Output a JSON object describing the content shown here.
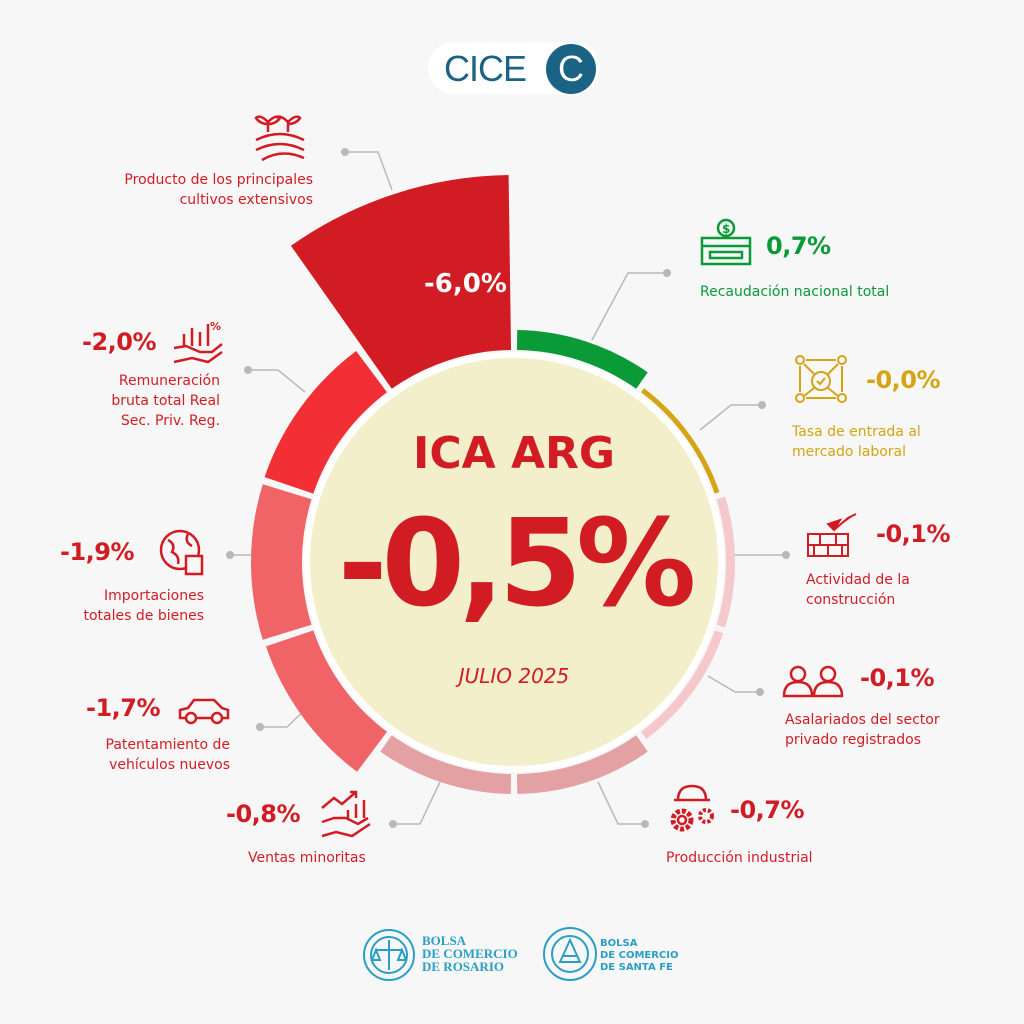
{
  "logo": {
    "text": "CICE",
    "circle_letter": "C"
  },
  "center": {
    "title": "ICA ARG",
    "value": "-0,5%",
    "period": "JULIO 2025"
  },
  "chart_data": {
    "type": "radial-bar",
    "title": "ICA ARG",
    "total": -0.5,
    "period": "JULIO 2025",
    "items": [
      {
        "label": "Recaudación nacional total",
        "value": 0.7,
        "display": "0,7%",
        "color": "#0a9a38",
        "icon": "cash-register-icon"
      },
      {
        "label": "Tasa de entrada al mercado laboral",
        "value": -0.0,
        "display": "-0,0%",
        "color": "#d4a414",
        "icon": "network-people-icon"
      },
      {
        "label": "Actividad de la construcción",
        "value": -0.1,
        "display": "-0,1%",
        "color": "#f5c9cb",
        "icon": "brick-wall-trowel-icon"
      },
      {
        "label": "Asalariados del sector privado registrados",
        "value": -0.1,
        "display": "-0,1%",
        "color": "#f5c9cb",
        "icon": "people-icon"
      },
      {
        "label": "Producción industrial",
        "value": -0.7,
        "display": "-0,7%",
        "color": "#e4a1a4",
        "icon": "gears-helmet-icon"
      },
      {
        "label": "Ventas minoritas",
        "value": -0.8,
        "display": "-0,8%",
        "color": "#e4a1a4",
        "icon": "hand-money-chart-icon"
      },
      {
        "label": "Patentamiento de vehículos nuevos",
        "value": -1.7,
        "display": "-1,7%",
        "color": "#f06468",
        "icon": "car-icon"
      },
      {
        "label": "Importaciones totales de bienes",
        "value": -1.9,
        "display": "-1,9%",
        "color": "#f06468",
        "icon": "globe-box-icon"
      },
      {
        "label": "Remuneración bruta total Real Sec. Priv. Reg.",
        "value": -2.0,
        "display": "-2,0%",
        "color": "#f22f34",
        "icon": "hand-chart-percent-icon"
      },
      {
        "label": "Producto de los principales cultivos extensivos",
        "value": -6.0,
        "display": "-6,0%",
        "color": "#d21c24",
        "icon": "crops-field-icon"
      }
    ]
  },
  "labels": {
    "cultivos": [
      "Producto de los principales",
      "cultivos extensivos"
    ],
    "recaudacion": [
      "Recaudación nacional total"
    ],
    "tasa": [
      "Tasa de entrada al",
      "mercado laboral"
    ],
    "construccion": [
      "Actividad de la",
      "construcción"
    ],
    "asalariados": [
      "Asalariados del sector",
      "privado registrados"
    ],
    "produccion": [
      "Producción industrial"
    ],
    "ventas": [
      "Ventas minoritas"
    ],
    "patentamiento": [
      "Patentamiento de",
      "vehículos nuevos"
    ],
    "importaciones": [
      "Importaciones",
      "totales de bienes"
    ],
    "remuneracion": [
      "Remuneración",
      "bruta total Real",
      "Sec. Priv. Reg."
    ]
  },
  "footer": {
    "org1": [
      "BOLSA",
      "DE COMERCIO",
      "DE ROSARIO"
    ],
    "org2": [
      "BOLSA",
      "DE COMERCIO",
      "DE SANTA FE"
    ]
  }
}
